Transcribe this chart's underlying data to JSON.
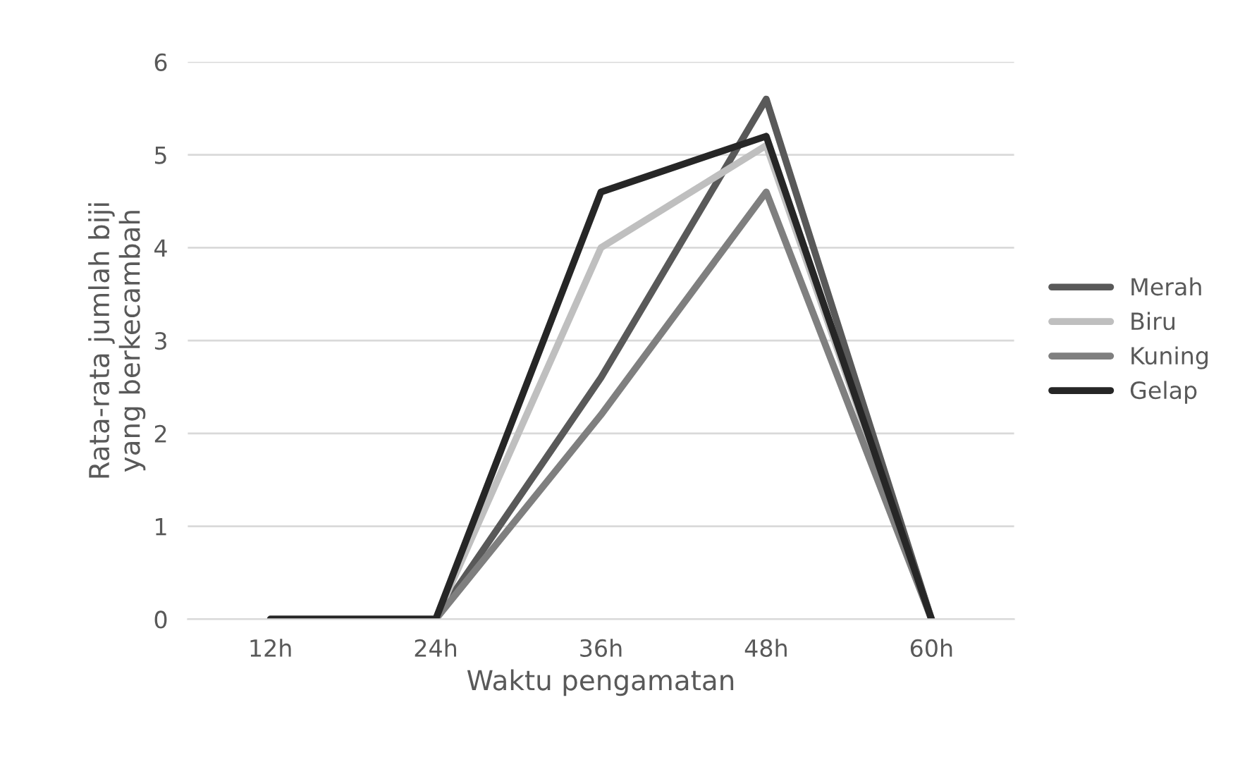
{
  "chart_data": {
    "type": "line",
    "xlabel": "Waktu pengamatan",
    "ylabel": "Rata-rata jumlah biji\nyang berkecambah",
    "categories": [
      "12h",
      "24h",
      "36h",
      "48h",
      "60h"
    ],
    "series": [
      {
        "name": "Merah",
        "color": "#595959",
        "values": [
          0,
          0,
          2.6,
          5.6,
          0
        ]
      },
      {
        "name": "Biru",
        "color": "#bfbfbf",
        "values": [
          0,
          0,
          4.0,
          5.1,
          0
        ]
      },
      {
        "name": "Kuning",
        "color": "#7f7f7f",
        "values": [
          0,
          0,
          2.2,
          4.6,
          0
        ]
      },
      {
        "name": "Gelap",
        "color": "#262626",
        "values": [
          0,
          0,
          4.6,
          5.2,
          0
        ]
      }
    ],
    "ylim": [
      0,
      6
    ],
    "yticks": [
      0,
      1,
      2,
      3,
      4,
      5,
      6
    ],
    "grid": "y",
    "legend": "right",
    "marker": "none",
    "line_style": "solid"
  }
}
